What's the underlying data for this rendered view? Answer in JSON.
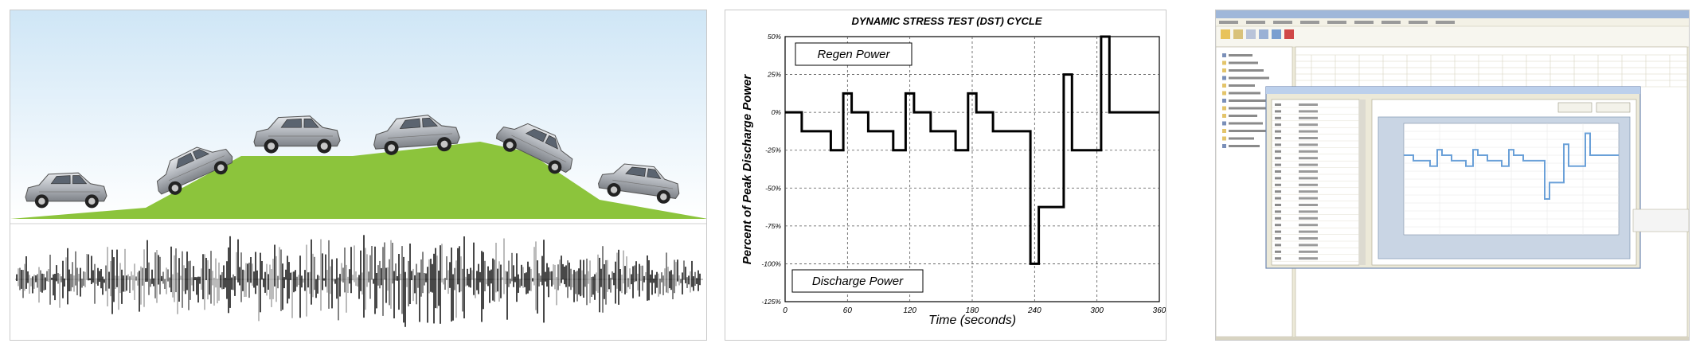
{
  "panels": {
    "scene": {
      "sky_top": "#cfe6f6",
      "sky_bottom": "#ffffff",
      "hill_color": "#8cc43c",
      "car_color": "#b8bcc2",
      "car_count": 6
    },
    "dst_chart": {
      "chart_data": {
        "type": "line",
        "title": "DYNAMIC STRESS TEST (DST) CYCLE",
        "xlabel": "Time (seconds)",
        "ylabel": "Percent of Peak Discharge Power",
        "xlim": [
          0,
          360
        ],
        "ylim": [
          -125,
          50
        ],
        "x_ticks": [
          "0",
          "60",
          "120",
          "180",
          "240",
          "300",
          "360"
        ],
        "y_ticks": [
          "50%",
          "25%",
          "0%",
          "-25%",
          "-50%",
          "-75%",
          "-100%",
          "-125%"
        ],
        "grid": true,
        "annotations": [
          "Regen Power",
          "Discharge Power"
        ],
        "step_points": [
          [
            0,
            0
          ],
          [
            16,
            0
          ],
          [
            16,
            -12.5
          ],
          [
            44,
            -12.5
          ],
          [
            44,
            -25
          ],
          [
            56,
            -25
          ],
          [
            56,
            12.5
          ],
          [
            64,
            12.5
          ],
          [
            64,
            0
          ],
          [
            80,
            0
          ],
          [
            80,
            -12.5
          ],
          [
            104,
            -12.5
          ],
          [
            104,
            -25
          ],
          [
            116,
            -25
          ],
          [
            116,
            12.5
          ],
          [
            124,
            12.5
          ],
          [
            124,
            0
          ],
          [
            140,
            0
          ],
          [
            140,
            -12.5
          ],
          [
            164,
            -12.5
          ],
          [
            164,
            -25
          ],
          [
            176,
            -25
          ],
          [
            176,
            12.5
          ],
          [
            184,
            12.5
          ],
          [
            184,
            0
          ],
          [
            200,
            0
          ],
          [
            200,
            -12.5
          ],
          [
            236,
            -12.5
          ],
          [
            236,
            -100
          ],
          [
            244,
            -100
          ],
          [
            244,
            -62.5
          ],
          [
            268,
            -62.5
          ],
          [
            268,
            25
          ],
          [
            276,
            25
          ],
          [
            276,
            -25
          ],
          [
            304,
            -25
          ],
          [
            304,
            50
          ],
          [
            312,
            50
          ],
          [
            312,
            0
          ],
          [
            360,
            0
          ]
        ],
        "line_color": "#000000"
      }
    },
    "app_screenshot": {
      "window_bg": "#ece9d8",
      "titlebar_color": "#9fb7d9",
      "plot_line_color": "#6aa0d8"
    }
  }
}
